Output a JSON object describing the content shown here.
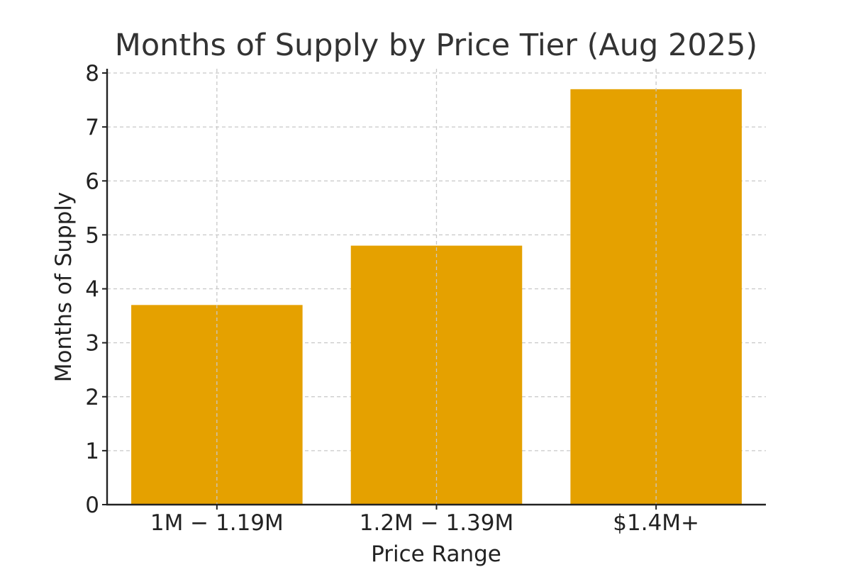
{
  "chart_data": {
    "type": "bar",
    "title": "Months of Supply by Price Tier (Aug 2025)",
    "xlabel": "Price Range",
    "ylabel": "Months of Supply",
    "categories": [
      "1M − 1.19M",
      "1.2M − 1.39M",
      "$1.4M+"
    ],
    "values": [
      3.7,
      4.8,
      7.7
    ],
    "ylim": [
      0,
      8
    ],
    "yticks": [
      "0",
      "1",
      "2",
      "3",
      "4",
      "5",
      "6",
      "7",
      "8"
    ],
    "grid": true,
    "bar_color": "#E5A100"
  }
}
